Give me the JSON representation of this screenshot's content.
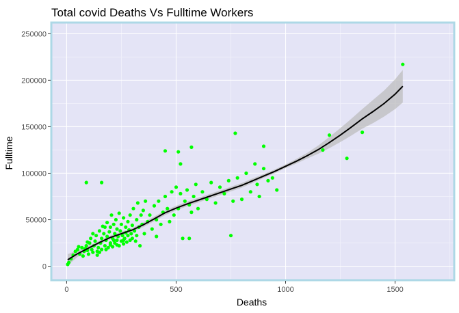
{
  "chart_data": {
    "type": "scatter",
    "title": "Total covid Deaths Vs Fulltime Workers",
    "xlabel": "Deaths",
    "ylabel": "Fulltime",
    "xlim": [
      -70,
      1770
    ],
    "ylim": [
      -15000,
      262000
    ],
    "x_ticks": [
      0,
      500,
      1000,
      1500
    ],
    "y_ticks": [
      0,
      50000,
      100000,
      150000,
      200000,
      250000
    ],
    "grid": true,
    "legend": "none",
    "colors": {
      "panel_background": "#e4e4f6",
      "panel_border": "#add8e6",
      "grid_major": "#ffffff",
      "grid_minor": "#f1f1fb",
      "points": "#00ff00",
      "smooth_line": "#000000",
      "confidence_band": "#bdbdbd"
    },
    "points": [
      [
        5,
        2000
      ],
      [
        10,
        4000
      ],
      [
        20,
        8000
      ],
      [
        30,
        12000
      ],
      [
        40,
        16000
      ],
      [
        50,
        18000
      ],
      [
        55,
        21000
      ],
      [
        60,
        13000
      ],
      [
        70,
        20000
      ],
      [
        75,
        11000
      ],
      [
        80,
        16000
      ],
      [
        85,
        19000
      ],
      [
        90,
        22000
      ],
      [
        95,
        17000
      ],
      [
        100,
        13000
      ],
      [
        105,
        25000
      ],
      [
        110,
        30000
      ],
      [
        115,
        18000
      ],
      [
        120,
        35000
      ],
      [
        120,
        15000
      ],
      [
        125,
        22000
      ],
      [
        130,
        27000
      ],
      [
        135,
        33000
      ],
      [
        140,
        16000
      ],
      [
        145,
        20000
      ],
      [
        150,
        38000
      ],
      [
        155,
        25000
      ],
      [
        160,
        30000
      ],
      [
        160,
        18000
      ],
      [
        165,
        43000
      ],
      [
        170,
        35000
      ],
      [
        175,
        22000
      ],
      [
        180,
        28000
      ],
      [
        185,
        47000
      ],
      [
        185,
        32000
      ],
      [
        190,
        20000
      ],
      [
        195,
        37000
      ],
      [
        200,
        25000
      ],
      [
        200,
        42000
      ],
      [
        205,
        55000
      ],
      [
        210,
        30000
      ],
      [
        210,
        21000
      ],
      [
        215,
        45000
      ],
      [
        220,
        35000
      ],
      [
        220,
        25000
      ],
      [
        225,
        50000
      ],
      [
        230,
        28000
      ],
      [
        230,
        40000
      ],
      [
        235,
        32000
      ],
      [
        240,
        22000
      ],
      [
        240,
        57000
      ],
      [
        245,
        38000
      ],
      [
        250,
        27000
      ],
      [
        250,
        45000
      ],
      [
        255,
        33000
      ],
      [
        260,
        24000
      ],
      [
        260,
        52000
      ],
      [
        265,
        30000
      ],
      [
        270,
        42000
      ],
      [
        270,
        36000
      ],
      [
        275,
        26000
      ],
      [
        280,
        48000
      ],
      [
        280,
        33000
      ],
      [
        285,
        39000
      ],
      [
        290,
        28000
      ],
      [
        290,
        55000
      ],
      [
        295,
        35000
      ],
      [
        300,
        44000
      ],
      [
        300,
        30000
      ],
      [
        305,
        62000
      ],
      [
        310,
        38000
      ],
      [
        315,
        27000
      ],
      [
        320,
        50000
      ],
      [
        320,
        33000
      ],
      [
        325,
        68000
      ],
      [
        330,
        42000
      ],
      [
        335,
        22000
      ],
      [
        340,
        55000
      ],
      [
        345,
        45000
      ],
      [
        350,
        60000
      ],
      [
        355,
        35000
      ],
      [
        360,
        70000
      ],
      [
        370,
        48000
      ],
      [
        380,
        55000
      ],
      [
        390,
        40000
      ],
      [
        400,
        65000
      ],
      [
        410,
        50000
      ],
      [
        420,
        70000
      ],
      [
        430,
        45000
      ],
      [
        440,
        58000
      ],
      [
        450,
        75000
      ],
      [
        460,
        62000
      ],
      [
        470,
        48000
      ],
      [
        480,
        80000
      ],
      [
        490,
        55000
      ],
      [
        500,
        85000
      ],
      [
        510,
        62000
      ],
      [
        520,
        78000
      ],
      [
        530,
        30000
      ],
      [
        540,
        70000
      ],
      [
        550,
        82000
      ],
      [
        560,
        66000
      ],
      [
        570,
        58000
      ],
      [
        580,
        75000
      ],
      [
        590,
        88000
      ],
      [
        600,
        62000
      ],
      [
        620,
        80000
      ],
      [
        640,
        72000
      ],
      [
        660,
        90000
      ],
      [
        680,
        68000
      ],
      [
        700,
        85000
      ],
      [
        720,
        78000
      ],
      [
        740,
        92000
      ],
      [
        760,
        70000
      ],
      [
        780,
        95000
      ],
      [
        800,
        72000
      ],
      [
        820,
        100000
      ],
      [
        840,
        80000
      ],
      [
        860,
        110000
      ],
      [
        870,
        88000
      ],
      [
        880,
        75000
      ],
      [
        900,
        105000
      ],
      [
        920,
        92000
      ],
      [
        940,
        95000
      ],
      [
        960,
        82000
      ],
      [
        90,
        90000
      ],
      [
        160,
        90000
      ],
      [
        450,
        124000
      ],
      [
        510,
        123000
      ],
      [
        520,
        110000
      ],
      [
        570,
        128000
      ],
      [
        770,
        143000
      ],
      [
        900,
        129000
      ],
      [
        750,
        33000
      ],
      [
        560,
        30000
      ],
      [
        410,
        32000
      ],
      [
        200,
        23000
      ],
      [
        215,
        28000
      ],
      [
        230,
        23000
      ],
      [
        260,
        28000
      ],
      [
        180,
        18000
      ],
      [
        150,
        15000
      ],
      [
        140,
        12000
      ],
      [
        1170,
        125000
      ],
      [
        1200,
        141000
      ],
      [
        1280,
        116000
      ],
      [
        1350,
        144000
      ],
      [
        1535,
        217000
      ],
      [
        95,
        26000
      ],
      [
        175,
        42000
      ]
    ],
    "smooth_line": [
      [
        5,
        7000
      ],
      [
        50,
        13500
      ],
      [
        100,
        19500
      ],
      [
        150,
        25500
      ],
      [
        200,
        31000
      ],
      [
        250,
        35000
      ],
      [
        300,
        39000
      ],
      [
        350,
        44500
      ],
      [
        400,
        51000
      ],
      [
        450,
        57500
      ],
      [
        500,
        62500
      ],
      [
        550,
        67000
      ],
      [
        600,
        71000
      ],
      [
        650,
        75000
      ],
      [
        700,
        79000
      ],
      [
        750,
        83000
      ],
      [
        800,
        87000
      ],
      [
        850,
        92000
      ],
      [
        900,
        97000
      ],
      [
        950,
        102000
      ],
      [
        1000,
        107500
      ],
      [
        1050,
        113000
      ],
      [
        1100,
        119000
      ],
      [
        1150,
        125500
      ],
      [
        1200,
        133000
      ],
      [
        1250,
        141000
      ],
      [
        1300,
        149500
      ],
      [
        1350,
        158500
      ],
      [
        1400,
        166500
      ],
      [
        1450,
        175000
      ],
      [
        1500,
        185000
      ],
      [
        1535,
        193500
      ]
    ],
    "band_upper": [
      [
        5,
        13000
      ],
      [
        50,
        17000
      ],
      [
        100,
        22000
      ],
      [
        150,
        27500
      ],
      [
        200,
        33000
      ],
      [
        250,
        37000
      ],
      [
        300,
        41000
      ],
      [
        350,
        47000
      ],
      [
        400,
        53500
      ],
      [
        450,
        60000
      ],
      [
        500,
        65000
      ],
      [
        550,
        69500
      ],
      [
        600,
        73500
      ],
      [
        650,
        77500
      ],
      [
        700,
        81500
      ],
      [
        750,
        85500
      ],
      [
        800,
        89500
      ],
      [
        850,
        94500
      ],
      [
        900,
        99000
      ],
      [
        950,
        104000
      ],
      [
        1000,
        109500
      ],
      [
        1050,
        115500
      ],
      [
        1100,
        122000
      ],
      [
        1150,
        130000
      ],
      [
        1200,
        139000
      ],
      [
        1250,
        148500
      ],
      [
        1300,
        158500
      ],
      [
        1350,
        169000
      ],
      [
        1400,
        179000
      ],
      [
        1450,
        189000
      ],
      [
        1500,
        201000
      ],
      [
        1535,
        211000
      ]
    ],
    "band_lower": [
      [
        5,
        1000
      ],
      [
        50,
        10000
      ],
      [
        100,
        17000
      ],
      [
        150,
        23500
      ],
      [
        200,
        29000
      ],
      [
        250,
        33000
      ],
      [
        300,
        37000
      ],
      [
        350,
        42000
      ],
      [
        400,
        48500
      ],
      [
        450,
        55000
      ],
      [
        500,
        60000
      ],
      [
        550,
        64500
      ],
      [
        600,
        68500
      ],
      [
        650,
        72500
      ],
      [
        700,
        76500
      ],
      [
        750,
        80500
      ],
      [
        800,
        84500
      ],
      [
        850,
        89500
      ],
      [
        900,
        95000
      ],
      [
        950,
        100000
      ],
      [
        1000,
        105500
      ],
      [
        1050,
        110500
      ],
      [
        1100,
        116000
      ],
      [
        1150,
        121000
      ],
      [
        1200,
        127000
      ],
      [
        1250,
        133500
      ],
      [
        1300,
        140500
      ],
      [
        1350,
        148000
      ],
      [
        1400,
        154000
      ],
      [
        1450,
        161000
      ],
      [
        1500,
        169000
      ],
      [
        1535,
        176000
      ]
    ]
  }
}
